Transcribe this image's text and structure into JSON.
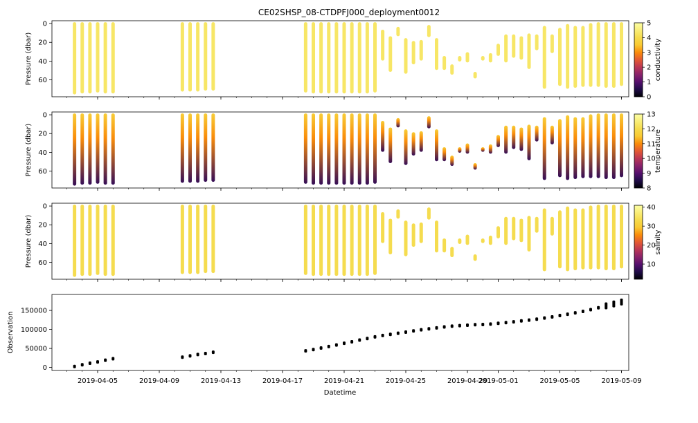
{
  "title": "CE02SHSP_08-CTDPFJ000_deployment0012",
  "xlabel": "Datetime",
  "x_ticks": [
    "2019-04-05",
    "2019-04-09",
    "2019-04-13",
    "2019-04-17",
    "2019-04-21",
    "2019-04-25",
    "2019-04-29",
    "2019-05-01",
    "2019-05-05",
    "2019-05-09"
  ],
  "chart_data": [
    {
      "type": "scatter",
      "panel": "conductivity",
      "ylabel": "Pressure (dbar)",
      "y_inverted": true,
      "ylim": [
        78,
        -3
      ],
      "y_ticks": [
        0,
        20,
        40,
        60
      ],
      "colorbar": {
        "label": "conductivity",
        "colormap": "inferno",
        "range": [
          0,
          5
        ],
        "ticks": [
          0,
          1,
          2,
          3,
          4,
          5
        ]
      },
      "color_value_typical": 4.3
    },
    {
      "type": "scatter",
      "panel": "temperature",
      "ylabel": "Pressure (dbar)",
      "y_inverted": true,
      "ylim": [
        78,
        -3
      ],
      "y_ticks": [
        0,
        20,
        40,
        60
      ],
      "colorbar": {
        "label": "temperature",
        "colormap": "inferno",
        "range": [
          8,
          13
        ],
        "ticks": [
          8,
          9,
          10,
          11,
          12,
          13
        ]
      },
      "color_value_surface": 11.0,
      "color_value_deep": 9.3
    },
    {
      "type": "scatter",
      "panel": "salinity",
      "ylabel": "Pressure (dbar)",
      "y_inverted": true,
      "ylim": [
        78,
        -3
      ],
      "y_ticks": [
        0,
        20,
        40,
        60
      ],
      "colorbar": {
        "label": "salinity",
        "colormap": "inferno",
        "range": [
          2,
          41
        ],
        "ticks": [
          10,
          20,
          30,
          40
        ]
      },
      "color_value_typical": 33.5
    },
    {
      "type": "scatter",
      "panel": "observation",
      "ylabel": "Observation",
      "ylim": [
        -8000,
        192000
      ],
      "y_ticks": [
        0,
        50000,
        100000,
        150000
      ],
      "y_tick_labels": [
        "0",
        "50000",
        "100000",
        "150000"
      ],
      "marker_color": "#000000"
    }
  ],
  "profiles": [
    {
      "date": "2019-04-03 12:00",
      "top": 0,
      "bottom": 74,
      "obs": 2500
    },
    {
      "date": "2019-04-04 00:00",
      "top": 0,
      "bottom": 73,
      "obs": 7000
    },
    {
      "date": "2019-04-04 12:00",
      "top": 0,
      "bottom": 73,
      "obs": 11000
    },
    {
      "date": "2019-04-05 00:00",
      "top": 0,
      "bottom": 72,
      "obs": 14500
    },
    {
      "date": "2019-04-05 12:00",
      "top": 0,
      "bottom": 73,
      "obs": 19000
    },
    {
      "date": "2019-04-06 00:00",
      "top": 0,
      "bottom": 73,
      "obs": 23000
    },
    {
      "date": "2019-04-10 12:00",
      "top": 0,
      "bottom": 71,
      "obs": 27000
    },
    {
      "date": "2019-04-11 00:00",
      "top": 0,
      "bottom": 71,
      "obs": 30500
    },
    {
      "date": "2019-04-11 12:00",
      "top": 0,
      "bottom": 71,
      "obs": 34000
    },
    {
      "date": "2019-04-12 00:00",
      "top": 0,
      "bottom": 70,
      "obs": 36500
    },
    {
      "date": "2019-04-12 12:00",
      "top": 0,
      "bottom": 70,
      "obs": 40000
    },
    {
      "date": "2019-04-18 12:00",
      "top": 0,
      "bottom": 72,
      "obs": 43500
    },
    {
      "date": "2019-04-19 00:00",
      "top": 0,
      "bottom": 73,
      "obs": 47000
    },
    {
      "date": "2019-04-19 12:00",
      "top": 0,
      "bottom": 73,
      "obs": 51000
    },
    {
      "date": "2019-04-20 00:00",
      "top": 0,
      "bottom": 73,
      "obs": 55000
    },
    {
      "date": "2019-04-20 12:00",
      "top": 0,
      "bottom": 73,
      "obs": 59000
    },
    {
      "date": "2019-04-21 00:00",
      "top": 0,
      "bottom": 73,
      "obs": 63500
    },
    {
      "date": "2019-04-21 12:00",
      "top": 0,
      "bottom": 73,
      "obs": 67500
    },
    {
      "date": "2019-04-22 00:00",
      "top": 0,
      "bottom": 73,
      "obs": 72000
    },
    {
      "date": "2019-04-22 12:00",
      "top": 0,
      "bottom": 73,
      "obs": 76000
    },
    {
      "date": "2019-04-23 00:00",
      "top": 0,
      "bottom": 72,
      "obs": 80500
    },
    {
      "date": "2019-04-23 12:00",
      "top": 8,
      "bottom": 38,
      "obs": 84000
    },
    {
      "date": "2019-04-24 00:00",
      "top": 15,
      "bottom": 50,
      "obs": 87000
    },
    {
      "date": "2019-04-24 12:00",
      "top": 5,
      "bottom": 12,
      "obs": 90000
    },
    {
      "date": "2019-04-25 00:00",
      "top": 17,
      "bottom": 52,
      "obs": 93000
    },
    {
      "date": "2019-04-25 12:00",
      "top": 20,
      "bottom": 42,
      "obs": 96000
    },
    {
      "date": "2019-04-26 00:00",
      "top": 19,
      "bottom": 38,
      "obs": 99000
    },
    {
      "date": "2019-04-26 12:00",
      "top": 3,
      "bottom": 13,
      "obs": 101500
    },
    {
      "date": "2019-04-27 00:00",
      "top": 17,
      "bottom": 48,
      "obs": 104000
    },
    {
      "date": "2019-04-27 12:00",
      "top": 36,
      "bottom": 48,
      "obs": 106500
    },
    {
      "date": "2019-04-28 00:00",
      "top": 45,
      "bottom": 53,
      "obs": 108500
    },
    {
      "date": "2019-04-28 12:00",
      "top": 36,
      "bottom": 39,
      "obs": 110000
    },
    {
      "date": "2019-04-29 00:00",
      "top": 32,
      "bottom": 40,
      "obs": 111000
    },
    {
      "date": "2019-04-29 12:00",
      "top": 53,
      "bottom": 57,
      "obs": 112500
    },
    {
      "date": "2019-04-30 00:00",
      "top": 36,
      "bottom": 38,
      "obs": 113000
    },
    {
      "date": "2019-04-30 12:00",
      "top": 33,
      "bottom": 40,
      "obs": 114000
    },
    {
      "date": "2019-05-01 00:00",
      "top": 23,
      "bottom": 33,
      "obs": 116000
    },
    {
      "date": "2019-05-01 12:00",
      "top": 13,
      "bottom": 40,
      "obs": 118000
    },
    {
      "date": "2019-05-02 00:00",
      "top": 13,
      "bottom": 35,
      "obs": 120000
    },
    {
      "date": "2019-05-02 12:00",
      "top": 15,
      "bottom": 37,
      "obs": 122500
    },
    {
      "date": "2019-05-03 00:00",
      "top": 12,
      "bottom": 47,
      "obs": 124500
    },
    {
      "date": "2019-05-03 12:00",
      "top": 13,
      "bottom": 27,
      "obs": 127000
    },
    {
      "date": "2019-05-04 00:00",
      "top": 4,
      "bottom": 68,
      "obs": 130000
    },
    {
      "date": "2019-05-04 12:00",
      "top": 13,
      "bottom": 30,
      "obs": 133000
    },
    {
      "date": "2019-05-05 00:00",
      "top": 6,
      "bottom": 65,
      "obs": 136500
    },
    {
      "date": "2019-05-05 12:00",
      "top": 2,
      "bottom": 68,
      "obs": 140000
    },
    {
      "date": "2019-05-06 00:00",
      "top": 4,
      "bottom": 67,
      "obs": 143500
    },
    {
      "date": "2019-05-06 12:00",
      "top": 4,
      "bottom": 66,
      "obs": 147500
    },
    {
      "date": "2019-05-07 00:00",
      "top": 1,
      "bottom": 66,
      "obs": 152000
    },
    {
      "date": "2019-05-07 12:00",
      "top": 0,
      "bottom": 66,
      "obs": 157000
    },
    {
      "date": "2019-05-08 00:00",
      "top": 0,
      "bottom": 67,
      "obs": 162000
    },
    {
      "date": "2019-05-08 12:00",
      "top": 0,
      "bottom": 67,
      "obs": 167000
    },
    {
      "date": "2019-05-09 00:00",
      "top": 0,
      "bottom": 65,
      "obs": 172000
    }
  ]
}
